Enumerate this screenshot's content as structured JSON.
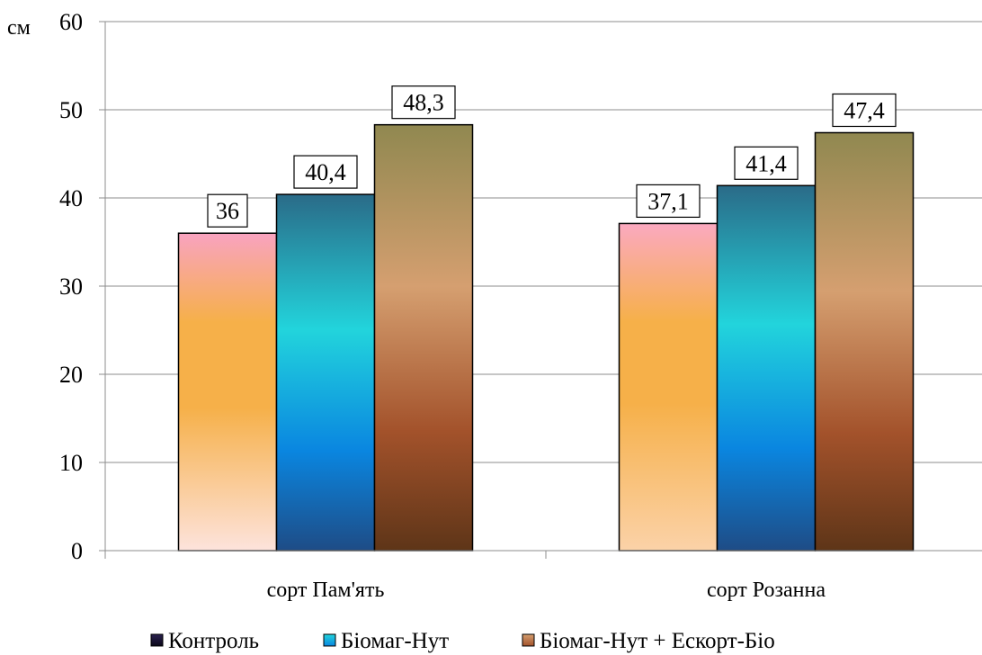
{
  "chart_data": {
    "type": "bar",
    "unit_label": "см",
    "categories": [
      "сорт Пам'ять",
      "сорт Розанна"
    ],
    "series": [
      {
        "name": "Контроль",
        "values": [
          36,
          37.1
        ],
        "value_labels": [
          "36",
          "37,1"
        ],
        "legend_color": "#1a1533"
      },
      {
        "name": "Біомаг-Нут",
        "values": [
          40.4,
          41.4
        ],
        "value_labels": [
          "40,4",
          "41,4"
        ],
        "legend_color": "#2aa8e0"
      },
      {
        "name": "Біомаг-Нут + Ескорт-Біо",
        "values": [
          48.3,
          47.4
        ],
        "value_labels": [
          "48,3",
          "47,4"
        ],
        "legend_color": "#c08050"
      }
    ],
    "ylim": [
      0,
      60
    ],
    "yticks": [
      "0",
      "10",
      "20",
      "30",
      "40",
      "50",
      "60"
    ],
    "grid": true,
    "legend_position": "bottom"
  }
}
